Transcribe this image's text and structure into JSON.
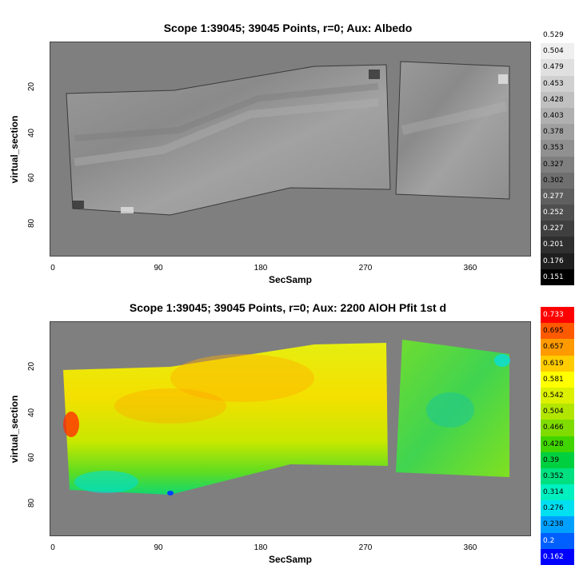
{
  "chart_data": [
    {
      "type": "heatmap",
      "title": "Scope 1:39045;  39045 Points, r=0;  Aux: Albedo",
      "xlabel": "SecSamp",
      "ylabel": "virtual_section",
      "xticks": [
        "0",
        "90",
        "180",
        "270",
        "360"
      ],
      "yticks": [
        "20",
        "40",
        "60",
        "80"
      ],
      "xlim": [
        0,
        405
      ],
      "ylim": [
        0,
        95
      ],
      "colorbar_labels": [
        "0.529",
        "0.504",
        "0.479",
        "0.453",
        "0.428",
        "0.403",
        "0.378",
        "0.353",
        "0.327",
        "0.302",
        "0.277",
        "0.252",
        "0.227",
        "0.201",
        "0.176",
        "0.151"
      ],
      "colorbar_colors": [
        "#ffffff",
        "#efefef",
        "#e0e0e0",
        "#d0d0d0",
        "#c0c0c0",
        "#b0b0b0",
        "#a0a0a0",
        "#909090",
        "#7f7f7f",
        "#6f6f6f",
        "#5f5f5f",
        "#4f4f4f",
        "#3f3f3f",
        "#2f2f2f",
        "#1f1f1f",
        "#000000"
      ]
    },
    {
      "type": "heatmap",
      "title": "Scope 1:39045;  39045 Points, r=0;  Aux: 2200 AlOH Pfit 1st d",
      "xlabel": "SecSamp",
      "ylabel": "virtual_section",
      "xticks": [
        "0",
        "90",
        "180",
        "270",
        "360"
      ],
      "yticks": [
        "20",
        "40",
        "60",
        "80"
      ],
      "xlim": [
        0,
        405
      ],
      "ylim": [
        0,
        95
      ],
      "colorbar_labels": [
        "0.733",
        "0.695",
        "0.657",
        "0.619",
        "0.581",
        "0.542",
        "0.504",
        "0.466",
        "0.428",
        "0.39",
        "0.352",
        "0.314",
        "0.276",
        "0.238",
        "0.2",
        "0.162"
      ],
      "colorbar_colors": [
        "#ff0000",
        "#ff5a00",
        "#ff9a00",
        "#ffcc00",
        "#ffff00",
        "#ddf000",
        "#b2e600",
        "#80dc00",
        "#40d400",
        "#00d040",
        "#00e080",
        "#00f0c0",
        "#00e0f0",
        "#00a0ff",
        "#0060ff",
        "#0000ff"
      ]
    }
  ]
}
